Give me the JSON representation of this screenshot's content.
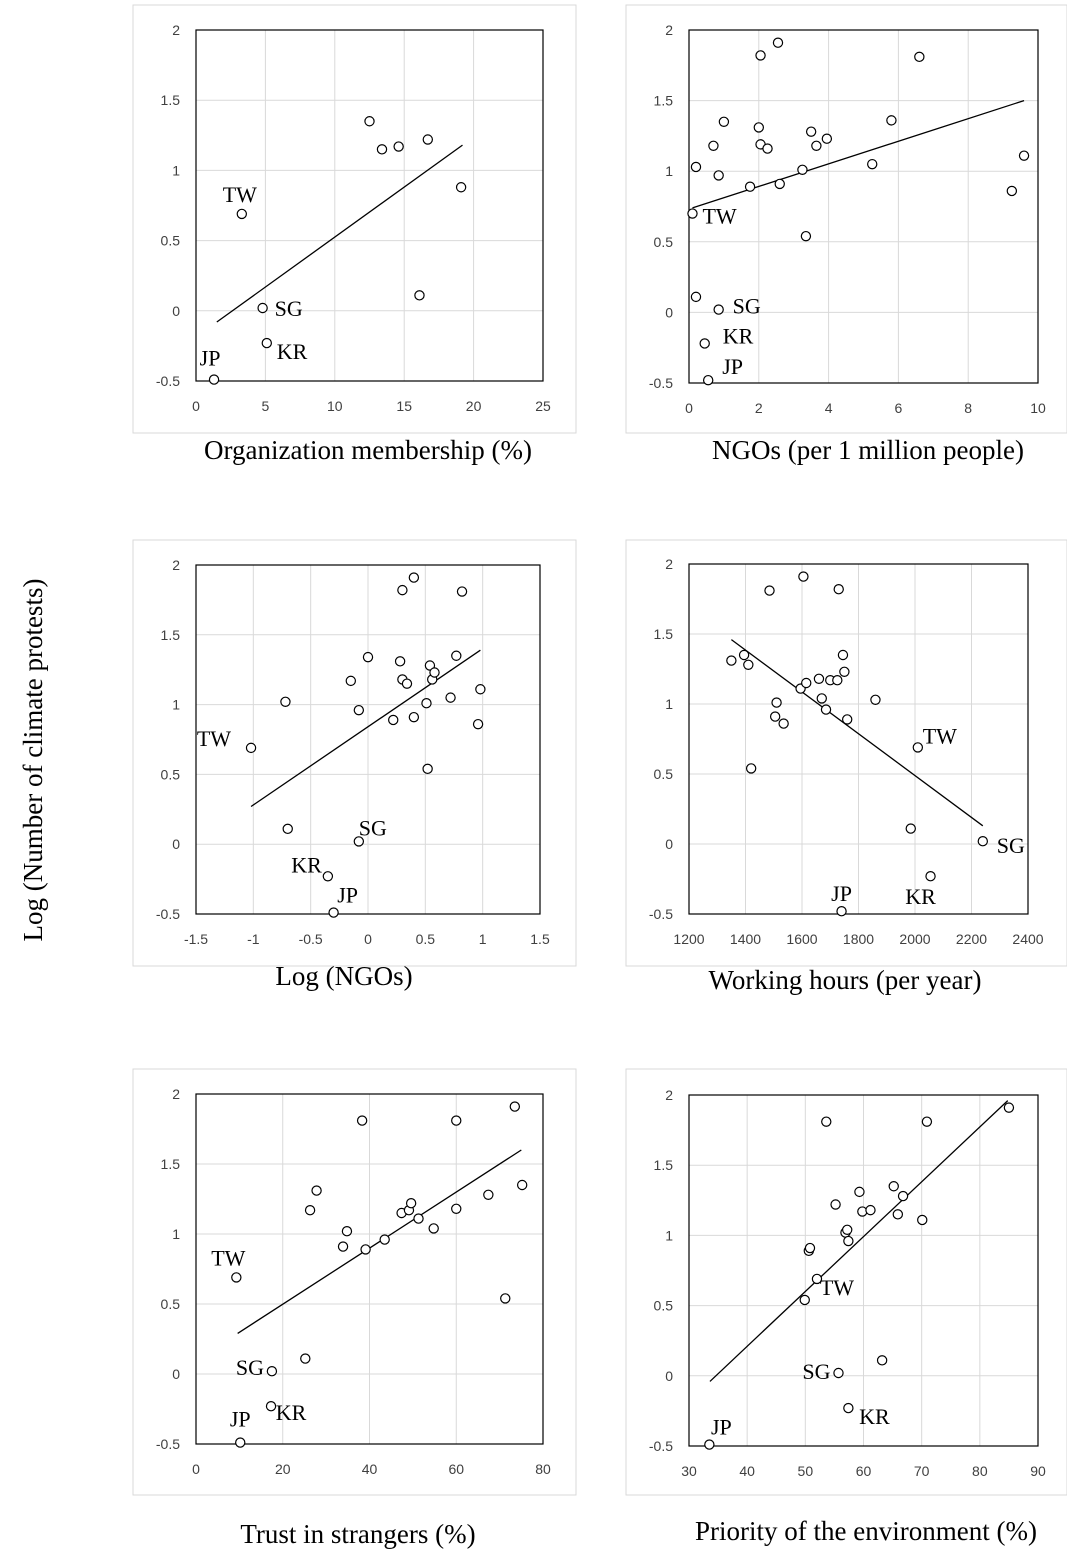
{
  "y_title": "Log (Number of climate protests)",
  "chart_data": [
    {
      "type": "scatter",
      "xlabel": "Organization membership (%)",
      "xlim": [
        0,
        25
      ],
      "xticks": [
        0,
        5,
        10,
        15,
        20,
        25
      ],
      "xtick_labels": [
        "0",
        "5",
        "10",
        "15",
        "20",
        "25"
      ],
      "ylim": [
        -0.5,
        2
      ],
      "yticks": [
        -0.5,
        0,
        0.5,
        1,
        1.5,
        2
      ],
      "ytick_labels": [
        "-0.5",
        "0",
        "0.5",
        "1",
        "1.5",
        "2"
      ],
      "grid": true,
      "points": [
        {
          "x": 3.3,
          "y": 0.69,
          "label": "TW"
        },
        {
          "x": 4.8,
          "y": 0.02,
          "label": "SG"
        },
        {
          "x": 5.1,
          "y": -0.23,
          "label": "KR"
        },
        {
          "x": 1.3,
          "y": -0.49,
          "label": "JP"
        },
        {
          "x": 12.5,
          "y": 1.35
        },
        {
          "x": 13.4,
          "y": 1.15
        },
        {
          "x": 14.6,
          "y": 1.17
        },
        {
          "x": 16.7,
          "y": 1.22
        },
        {
          "x": 19.1,
          "y": 0.88
        },
        {
          "x": 16.1,
          "y": 0.11
        }
      ],
      "trendline": [
        [
          1.5,
          -0.08
        ],
        [
          19.2,
          1.18
        ]
      ]
    },
    {
      "type": "scatter",
      "xlabel": "NGOs (per 1 million people)",
      "xlim": [
        0,
        10
      ],
      "xticks": [
        0,
        2,
        4,
        6,
        8,
        10
      ],
      "xtick_labels": [
        "0",
        "2",
        "4",
        "6",
        "8",
        "10"
      ],
      "ylim": [
        -0.5,
        2
      ],
      "yticks": [
        -0.5,
        0,
        0.5,
        1,
        1.5,
        2
      ],
      "ytick_labels": [
        "-0.5",
        "0",
        "0.5",
        "1",
        "1.5",
        "2"
      ],
      "grid": true,
      "points": [
        {
          "x": 0.1,
          "y": 0.7,
          "label": "TW"
        },
        {
          "x": 0.85,
          "y": 0.02,
          "label": "SG"
        },
        {
          "x": 0.45,
          "y": -0.22,
          "label": "KR"
        },
        {
          "x": 0.55,
          "y": -0.48,
          "label": "JP"
        },
        {
          "x": 0.2,
          "y": 0.11
        },
        {
          "x": 0.2,
          "y": 1.03
        },
        {
          "x": 0.7,
          "y": 1.18
        },
        {
          "x": 0.85,
          "y": 0.97
        },
        {
          "x": 1.0,
          "y": 1.35
        },
        {
          "x": 1.75,
          "y": 0.89
        },
        {
          "x": 2.0,
          "y": 1.31
        },
        {
          "x": 2.05,
          "y": 1.19
        },
        {
          "x": 2.05,
          "y": 1.82
        },
        {
          "x": 2.25,
          "y": 1.16
        },
        {
          "x": 2.55,
          "y": 1.91
        },
        {
          "x": 2.6,
          "y": 0.91
        },
        {
          "x": 3.25,
          "y": 1.01
        },
        {
          "x": 3.35,
          "y": 0.54
        },
        {
          "x": 3.5,
          "y": 1.28
        },
        {
          "x": 3.65,
          "y": 1.18
        },
        {
          "x": 3.95,
          "y": 1.23
        },
        {
          "x": 5.25,
          "y": 1.05
        },
        {
          "x": 5.8,
          "y": 1.36
        },
        {
          "x": 6.6,
          "y": 1.81
        },
        {
          "x": 9.25,
          "y": 0.86
        },
        {
          "x": 9.6,
          "y": 1.11
        }
      ],
      "trendline": [
        [
          0.1,
          0.74
        ],
        [
          9.6,
          1.5
        ]
      ]
    },
    {
      "type": "scatter",
      "xlabel": "Log (NGOs)",
      "xlim": [
        -1.5,
        1.5
      ],
      "xticks": [
        -1.5,
        -1,
        -0.5,
        0,
        0.5,
        1,
        1.5
      ],
      "xtick_labels": [
        "-1.5",
        "-1",
        "-0.5",
        "0",
        "0.5",
        "1",
        "1.5"
      ],
      "ylim": [
        -0.5,
        2
      ],
      "yticks": [
        -0.5,
        0,
        0.5,
        1,
        1.5,
        2
      ],
      "ytick_labels": [
        "-0.5",
        "0",
        "0.5",
        "1",
        "1.5",
        "2"
      ],
      "grid": true,
      "points": [
        {
          "x": -1.02,
          "y": 0.69,
          "label": "TW"
        },
        {
          "x": -0.08,
          "y": 0.02,
          "label": "SG"
        },
        {
          "x": -0.35,
          "y": -0.23,
          "label": "KR"
        },
        {
          "x": -0.3,
          "y": -0.49,
          "label": "JP"
        },
        {
          "x": -0.7,
          "y": 0.11
        },
        {
          "x": -0.72,
          "y": 1.02
        },
        {
          "x": -0.15,
          "y": 1.17
        },
        {
          "x": -0.08,
          "y": 0.96
        },
        {
          "x": 0.0,
          "y": 1.34
        },
        {
          "x": 0.22,
          "y": 0.89
        },
        {
          "x": 0.28,
          "y": 1.31
        },
        {
          "x": 0.3,
          "y": 1.18
        },
        {
          "x": 0.3,
          "y": 1.82
        },
        {
          "x": 0.34,
          "y": 1.15
        },
        {
          "x": 0.4,
          "y": 0.91
        },
        {
          "x": 0.4,
          "y": 1.91
        },
        {
          "x": 0.51,
          "y": 1.01
        },
        {
          "x": 0.52,
          "y": 0.54
        },
        {
          "x": 0.54,
          "y": 1.28
        },
        {
          "x": 0.56,
          "y": 1.18
        },
        {
          "x": 0.58,
          "y": 1.23
        },
        {
          "x": 0.72,
          "y": 1.05
        },
        {
          "x": 0.77,
          "y": 1.35
        },
        {
          "x": 0.82,
          "y": 1.81
        },
        {
          "x": 0.96,
          "y": 0.86
        },
        {
          "x": 0.98,
          "y": 1.11
        }
      ],
      "trendline": [
        [
          -1.02,
          0.27
        ],
        [
          0.98,
          1.39
        ]
      ]
    },
    {
      "type": "scatter",
      "xlabel": "Working hours (per year)",
      "xlim": [
        1200,
        2400
      ],
      "xticks": [
        1200,
        1400,
        1600,
        1800,
        2000,
        2200,
        2400
      ],
      "xtick_labels": [
        "1200",
        "1400",
        "1600",
        "1800",
        "2000",
        "2200",
        "2400"
      ],
      "ylim": [
        -0.5,
        2
      ],
      "yticks": [
        -0.5,
        0,
        0.5,
        1,
        1.5,
        2
      ],
      "ytick_labels": [
        "-0.5",
        "0",
        "0.5",
        "1",
        "1.5",
        "2"
      ],
      "grid": true,
      "points": [
        {
          "x": 2010,
          "y": 0.69,
          "label": "TW"
        },
        {
          "x": 2240,
          "y": 0.02,
          "label": "SG"
        },
        {
          "x": 2055,
          "y": -0.23,
          "label": "KR"
        },
        {
          "x": 1740,
          "y": -0.48,
          "label": "JP"
        },
        {
          "x": 1350,
          "y": 1.31
        },
        {
          "x": 1395,
          "y": 1.35
        },
        {
          "x": 1410,
          "y": 1.28
        },
        {
          "x": 1420,
          "y": 0.54
        },
        {
          "x": 1485,
          "y": 1.81
        },
        {
          "x": 1505,
          "y": 0.91
        },
        {
          "x": 1510,
          "y": 1.01
        },
        {
          "x": 1535,
          "y": 0.86
        },
        {
          "x": 1595,
          "y": 1.11
        },
        {
          "x": 1605,
          "y": 1.91
        },
        {
          "x": 1615,
          "y": 1.15
        },
        {
          "x": 1660,
          "y": 1.18
        },
        {
          "x": 1670,
          "y": 1.04
        },
        {
          "x": 1685,
          "y": 0.96
        },
        {
          "x": 1700,
          "y": 1.17
        },
        {
          "x": 1725,
          "y": 1.17
        },
        {
          "x": 1730,
          "y": 1.82
        },
        {
          "x": 1745,
          "y": 1.35
        },
        {
          "x": 1750,
          "y": 1.23
        },
        {
          "x": 1760,
          "y": 0.89
        },
        {
          "x": 1860,
          "y": 1.03
        },
        {
          "x": 1985,
          "y": 0.11
        }
      ],
      "trendline": [
        [
          1350,
          1.46
        ],
        [
          2240,
          0.13
        ]
      ]
    },
    {
      "type": "scatter",
      "xlabel": "Trust in strangers (%)",
      "xlim": [
        0,
        80
      ],
      "xticks": [
        0,
        20,
        40,
        60,
        80
      ],
      "xtick_labels": [
        "0",
        "20",
        "40",
        "60",
        "80"
      ],
      "ylim": [
        -0.5,
        2
      ],
      "yticks": [
        -0.5,
        0,
        0.5,
        1,
        1.5,
        2
      ],
      "ytick_labels": [
        "-0.5",
        "0",
        "0.5",
        "1",
        "1.5",
        "2"
      ],
      "grid": true,
      "points": [
        {
          "x": 9.3,
          "y": 0.69,
          "label": "TW"
        },
        {
          "x": 17.5,
          "y": 0.02,
          "label": "SG"
        },
        {
          "x": 17.3,
          "y": -0.23,
          "label": "KR"
        },
        {
          "x": 10.2,
          "y": -0.49,
          "label": "JP"
        },
        {
          "x": 25.2,
          "y": 0.11
        },
        {
          "x": 26.3,
          "y": 1.17
        },
        {
          "x": 27.8,
          "y": 1.31
        },
        {
          "x": 33.9,
          "y": 0.91
        },
        {
          "x": 34.8,
          "y": 1.02
        },
        {
          "x": 38.3,
          "y": 1.81
        },
        {
          "x": 39.1,
          "y": 0.89
        },
        {
          "x": 43.5,
          "y": 0.96
        },
        {
          "x": 47.4,
          "y": 1.15
        },
        {
          "x": 49.1,
          "y": 1.17
        },
        {
          "x": 49.6,
          "y": 1.22
        },
        {
          "x": 51.3,
          "y": 1.11
        },
        {
          "x": 54.8,
          "y": 1.04
        },
        {
          "x": 60.0,
          "y": 1.81
        },
        {
          "x": 60.0,
          "y": 1.18
        },
        {
          "x": 67.4,
          "y": 1.28
        },
        {
          "x": 71.3,
          "y": 0.54
        },
        {
          "x": 73.5,
          "y": 1.91
        },
        {
          "x": 75.2,
          "y": 1.35
        }
      ],
      "trendline": [
        [
          9.6,
          0.29
        ],
        [
          75.0,
          1.6
        ]
      ]
    },
    {
      "type": "scatter",
      "xlabel": "Priority of the environment  (%)",
      "xlim": [
        30,
        90
      ],
      "xticks": [
        30,
        40,
        50,
        60,
        70,
        80,
        90
      ],
      "xtick_labels": [
        "30",
        "40",
        "50",
        "60",
        "70",
        "80",
        "90"
      ],
      "ylim": [
        -0.5,
        2
      ],
      "yticks": [
        -0.5,
        0,
        0.5,
        1,
        1.5,
        2
      ],
      "ytick_labels": [
        "-0.5",
        "0",
        "0.5",
        "1",
        "1.5",
        "2"
      ],
      "grid": true,
      "points": [
        {
          "x": 52.0,
          "y": 0.69,
          "label": "TW"
        },
        {
          "x": 55.7,
          "y": 0.02,
          "label": "SG"
        },
        {
          "x": 57.4,
          "y": -0.23,
          "label": "KR"
        },
        {
          "x": 33.5,
          "y": -0.49,
          "label": "JP"
        },
        {
          "x": 49.9,
          "y": 0.54
        },
        {
          "x": 50.6,
          "y": 0.89
        },
        {
          "x": 50.8,
          "y": 0.91
        },
        {
          "x": 53.6,
          "y": 1.81
        },
        {
          "x": 55.2,
          "y": 1.22
        },
        {
          "x": 56.9,
          "y": 1.02
        },
        {
          "x": 57.2,
          "y": 1.04
        },
        {
          "x": 57.4,
          "y": 0.96
        },
        {
          "x": 59.3,
          "y": 1.31
        },
        {
          "x": 59.8,
          "y": 1.17
        },
        {
          "x": 61.2,
          "y": 1.18
        },
        {
          "x": 63.2,
          "y": 0.11
        },
        {
          "x": 65.2,
          "y": 1.35
        },
        {
          "x": 65.9,
          "y": 1.15
        },
        {
          "x": 66.8,
          "y": 1.28
        },
        {
          "x": 70.1,
          "y": 1.11
        },
        {
          "x": 70.9,
          "y": 1.81
        },
        {
          "x": 85.0,
          "y": 1.91
        }
      ],
      "trendline": [
        [
          33.6,
          -0.04
        ],
        [
          84.8,
          1.96
        ]
      ]
    }
  ]
}
